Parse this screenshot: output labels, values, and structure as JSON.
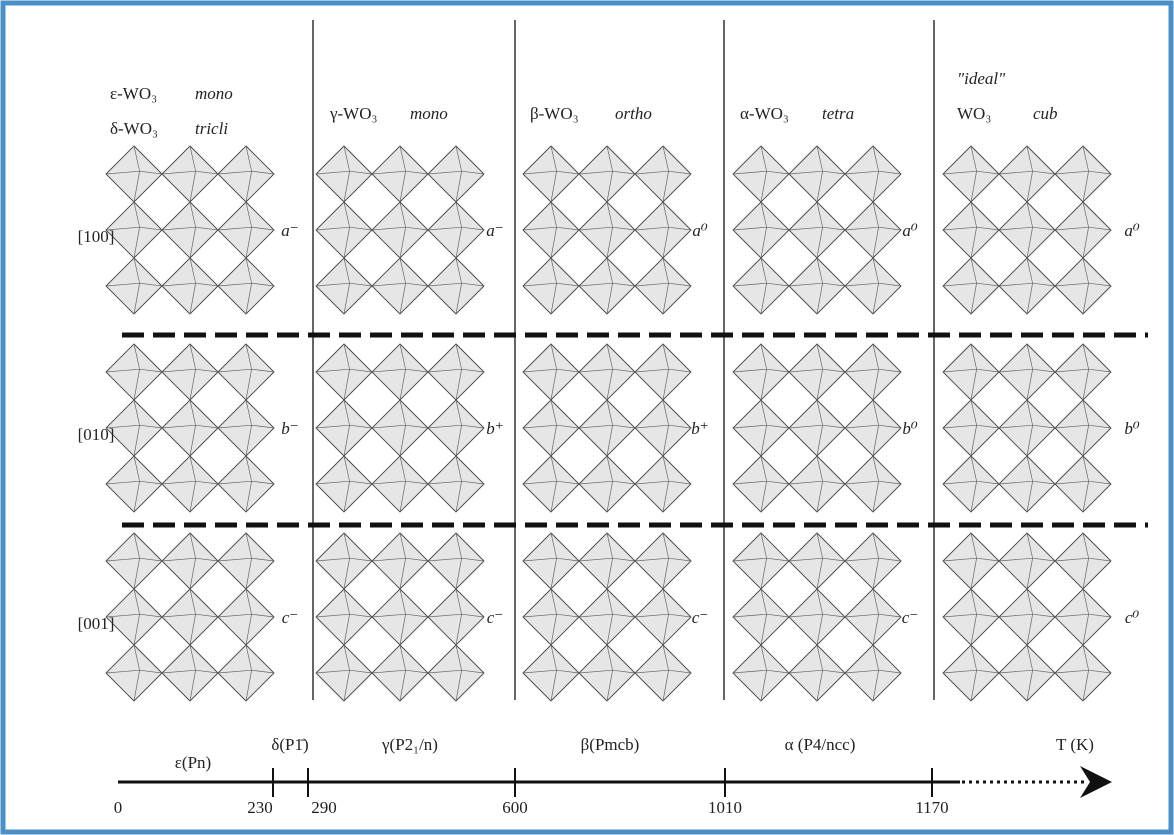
{
  "columns": [
    {
      "lines": [
        {
          "name": "ε-WO₃",
          "system": "mono"
        },
        {
          "name": "δ-WO₃",
          "system": "tricli"
        }
      ]
    },
    {
      "lines": [
        {
          "name": "γ-WO₃",
          "system": "mono"
        }
      ]
    },
    {
      "lines": [
        {
          "name": "β-WO₃",
          "system": "ortho"
        }
      ]
    },
    {
      "lines": [
        {
          "name": "α-WO₃",
          "system": "tetra"
        }
      ]
    },
    {
      "note": "\"ideal\"",
      "lines": [
        {
          "name": "WO₃",
          "system": "cub"
        }
      ]
    }
  ],
  "rows": [
    {
      "label": "[100]",
      "tilts": [
        "a⁻",
        "a⁻",
        "a⁰",
        "a⁰",
        "a⁰"
      ]
    },
    {
      "label": "[010]",
      "tilts": [
        "b⁻",
        "b⁺",
        "b⁺",
        "b⁰",
        "b⁰"
      ]
    },
    {
      "label": "[001]",
      "tilts": [
        "c⁻",
        "c⁻",
        "c⁻",
        "c⁻",
        "c⁰"
      ]
    }
  ],
  "axis": {
    "phases": [
      "ε(Pn)",
      "δ(P1̄)",
      "γ(P2₁/n)",
      "β(Pmcb)",
      "α (P4/ncc)"
    ],
    "unit": "T (K)",
    "ticks": [
      "0",
      "230",
      "290",
      "600",
      "1010",
      "1170"
    ]
  }
}
